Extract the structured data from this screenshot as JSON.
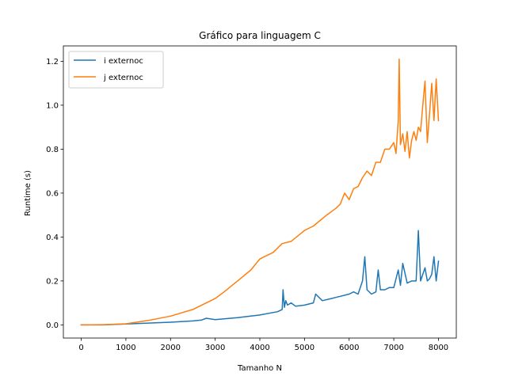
{
  "chart_data": {
    "type": "line",
    "title": "Gráfico para linguagem C",
    "xlabel": "Tamanho N",
    "ylabel": "Runtime (s)",
    "xlim": [
      -400,
      8400
    ],
    "ylim": [
      -0.06,
      1.27
    ],
    "xticks": [
      0,
      1000,
      2000,
      3000,
      4000,
      5000,
      6000,
      7000,
      8000
    ],
    "xtick_labels": [
      "0",
      "1000",
      "2000",
      "3000",
      "4000",
      "5000",
      "6000",
      "7000",
      "8000"
    ],
    "yticks": [
      0.0,
      0.2,
      0.4,
      0.6,
      0.8,
      1.0,
      1.2
    ],
    "ytick_labels": [
      "0.0",
      "0.2",
      "0.4",
      "0.6",
      "0.8",
      "1.0",
      "1.2"
    ],
    "grid": false,
    "legend": "top-left",
    "series": [
      {
        "name": "i externoc",
        "color": "#1f77b4",
        "x": [
          0,
          500,
          1000,
          1500,
          2000,
          2500,
          2700,
          2800,
          3000,
          3500,
          4000,
          4400,
          4500,
          4520,
          4550,
          4580,
          4620,
          4700,
          4800,
          5000,
          5200,
          5250,
          5400,
          5600,
          5700,
          5800,
          6000,
          6100,
          6200,
          6300,
          6350,
          6400,
          6500,
          6600,
          6650,
          6700,
          6800,
          6900,
          7000,
          7100,
          7150,
          7200,
          7300,
          7400,
          7500,
          7550,
          7600,
          7700,
          7750,
          7800,
          7850,
          7900,
          7950,
          8000
        ],
        "y": [
          0.0,
          0.0,
          0.004,
          0.008,
          0.012,
          0.018,
          0.022,
          0.03,
          0.024,
          0.033,
          0.045,
          0.06,
          0.07,
          0.16,
          0.08,
          0.11,
          0.09,
          0.1,
          0.085,
          0.09,
          0.1,
          0.14,
          0.11,
          0.12,
          0.125,
          0.13,
          0.14,
          0.15,
          0.14,
          0.2,
          0.31,
          0.16,
          0.14,
          0.15,
          0.25,
          0.16,
          0.16,
          0.17,
          0.17,
          0.25,
          0.18,
          0.28,
          0.19,
          0.2,
          0.2,
          0.43,
          0.2,
          0.26,
          0.2,
          0.21,
          0.23,
          0.31,
          0.2,
          0.29
        ]
      },
      {
        "name": "j externoc",
        "color": "#ff7f0e",
        "x": [
          0,
          500,
          1000,
          1500,
          2000,
          2500,
          3000,
          3200,
          3500,
          3800,
          4000,
          4300,
          4500,
          4700,
          5000,
          5200,
          5500,
          5700,
          5800,
          5900,
          6000,
          6100,
          6200,
          6300,
          6400,
          6500,
          6600,
          6700,
          6800,
          6900,
          7000,
          7050,
          7100,
          7120,
          7150,
          7200,
          7250,
          7300,
          7350,
          7400,
          7450,
          7500,
          7550,
          7600,
          7650,
          7700,
          7750,
          7800,
          7850,
          7900,
          7950,
          8000
        ],
        "y": [
          0.0,
          0.001,
          0.005,
          0.02,
          0.04,
          0.07,
          0.12,
          0.15,
          0.2,
          0.25,
          0.3,
          0.33,
          0.37,
          0.38,
          0.43,
          0.45,
          0.5,
          0.53,
          0.55,
          0.6,
          0.57,
          0.62,
          0.63,
          0.67,
          0.7,
          0.68,
          0.74,
          0.74,
          0.8,
          0.8,
          0.83,
          0.78,
          0.93,
          1.21,
          0.82,
          0.87,
          0.79,
          0.88,
          0.76,
          0.84,
          0.88,
          0.84,
          0.9,
          0.88,
          1.0,
          1.11,
          0.83,
          0.96,
          1.1,
          0.93,
          1.12,
          0.93
        ]
      }
    ]
  }
}
